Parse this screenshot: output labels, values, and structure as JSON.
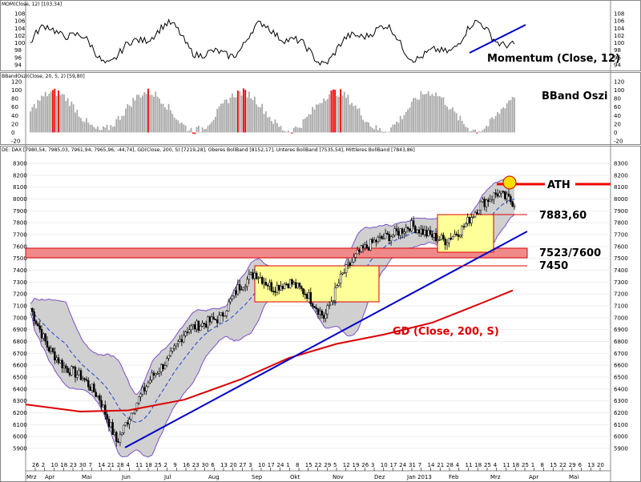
{
  "colors": {
    "candle": "#000000",
    "sma200": "#dd0000",
    "band": "#d0d0d0",
    "band_edge": "#7b4fc8",
    "mid_band": "#2244cc",
    "trendline": "#0000cc",
    "resistance_zone": "#f08a8a",
    "consolidation_box": "#ffff99",
    "bbo_gray": "#a8a8a8",
    "bbo_red": "#ee0000",
    "ath_marker": "#ffdd00"
  },
  "panels": {
    "momentum": {
      "header": "MOM(Close, 12) [103,34]",
      "label": "Momentum (Close, 12)",
      "yticks": [
        108,
        106,
        104,
        102,
        100,
        98,
        96,
        94
      ]
    },
    "bbo": {
      "header": "BBandOszi(Close, 20, 5, 2) [59,80]",
      "label": "BBand Oszi",
      "yticks": [
        120,
        100,
        80,
        60,
        40,
        20,
        0,
        -20
      ]
    },
    "price": {
      "header": "DE: DAX [7980,54, 7985,03, 7961,94, 7965,96, -44,74], GD(Close, 200, S) [7219,28], Oberes BollBand [8152,17], Unteres BollBand [7535,54], Mittleres BollBand [7843,86]",
      "yticks": [
        8300,
        8200,
        8100,
        8000,
        7900,
        7800,
        7700,
        7600,
        7500,
        7400,
        7300,
        7200,
        7100,
        7000,
        6900,
        6800,
        6700,
        6600,
        6500,
        6400,
        6300,
        6200,
        6100,
        6000,
        5900
      ]
    }
  },
  "annotations": {
    "ath": "ATH",
    "level_7883": "7883,60",
    "level_7523": "7523/7600",
    "level_7450": "7450",
    "sma_label": "GD (Close, 200, S)"
  },
  "xaxis": {
    "day_ticks": [
      "26",
      "2",
      "10",
      "18",
      "23",
      "30",
      "7",
      "14",
      "21",
      "28",
      "4",
      "11",
      "18",
      "25",
      "2",
      "9",
      "16",
      "23",
      "30",
      "6",
      "13",
      "20",
      "27",
      "3",
      "10",
      "17",
      "24",
      "1",
      "8",
      "15",
      "22",
      "29",
      "5",
      "12",
      "19",
      "26",
      "3",
      "10",
      "17",
      "24",
      "31",
      "7",
      "14",
      "21",
      "28",
      "4",
      "11",
      "18",
      "25",
      "4",
      "11",
      "18",
      "25",
      "1",
      "8",
      "15",
      "22",
      "29",
      "6",
      "13",
      "20"
    ],
    "months": [
      "Mrz",
      "Apr",
      "Mai",
      "Jun",
      "Jul",
      "Aug",
      "Sep",
      "Okt",
      "Nov",
      "Dez",
      "Jan 2013",
      "Feb",
      "Mrz",
      "Apr",
      "Mai"
    ]
  },
  "chart_data": {
    "type": "candlestick",
    "symbol": "DE: DAX",
    "ylim": [
      5850,
      8380
    ],
    "ohlc_last": {
      "open": 7980.54,
      "high": 7985.03,
      "low": 7961.94,
      "close": 7965.96,
      "change": -44.74
    },
    "indicators": {
      "sma200_last": 7219.28,
      "upper_bollinger": 8152.17,
      "lower_bollinger": 7535.54,
      "middle_bollinger": 7843.86,
      "momentum_last": 103.34,
      "bband_oszi_last": 59.8
    },
    "approx_close_path": [
      {
        "date": "2012-03-26",
        "close": 7080
      },
      {
        "date": "2012-04-10",
        "close": 6750
      },
      {
        "date": "2012-04-23",
        "close": 6580
      },
      {
        "date": "2012-05-07",
        "close": 6500
      },
      {
        "date": "2012-05-21",
        "close": 6320
      },
      {
        "date": "2012-06-04",
        "close": 5950
      },
      {
        "date": "2012-06-18",
        "close": 6250
      },
      {
        "date": "2012-07-02",
        "close": 6500
      },
      {
        "date": "2012-07-16",
        "close": 6650
      },
      {
        "date": "2012-07-30",
        "close": 6900
      },
      {
        "date": "2012-08-13",
        "close": 6950
      },
      {
        "date": "2012-08-27",
        "close": 7000
      },
      {
        "date": "2012-09-10",
        "close": 7250
      },
      {
        "date": "2012-09-24",
        "close": 7380
      },
      {
        "date": "2012-10-08",
        "close": 7250
      },
      {
        "date": "2012-10-22",
        "close": 7300
      },
      {
        "date": "2012-11-05",
        "close": 7200
      },
      {
        "date": "2012-11-16",
        "close": 7000
      },
      {
        "date": "2012-11-26",
        "close": 7350
      },
      {
        "date": "2012-12-10",
        "close": 7550
      },
      {
        "date": "2012-12-24",
        "close": 7650
      },
      {
        "date": "2013-01-07",
        "close": 7700
      },
      {
        "date": "2013-01-21",
        "close": 7780
      },
      {
        "date": "2013-02-04",
        "close": 7700
      },
      {
        "date": "2013-02-18",
        "close": 7650
      },
      {
        "date": "2013-03-04",
        "close": 7750
      },
      {
        "date": "2013-03-11",
        "close": 7950
      },
      {
        "date": "2013-03-18",
        "close": 8050
      },
      {
        "date": "2013-03-20",
        "close": 7966
      }
    ],
    "levels": [
      {
        "name": "ATH",
        "value": 8150
      },
      {
        "name": "7883,60",
        "value": 7883.6
      },
      {
        "name": "7523/7600",
        "range": [
          7523,
          7600
        ]
      },
      {
        "name": "7450",
        "value": 7450
      }
    ],
    "grid": true
  }
}
